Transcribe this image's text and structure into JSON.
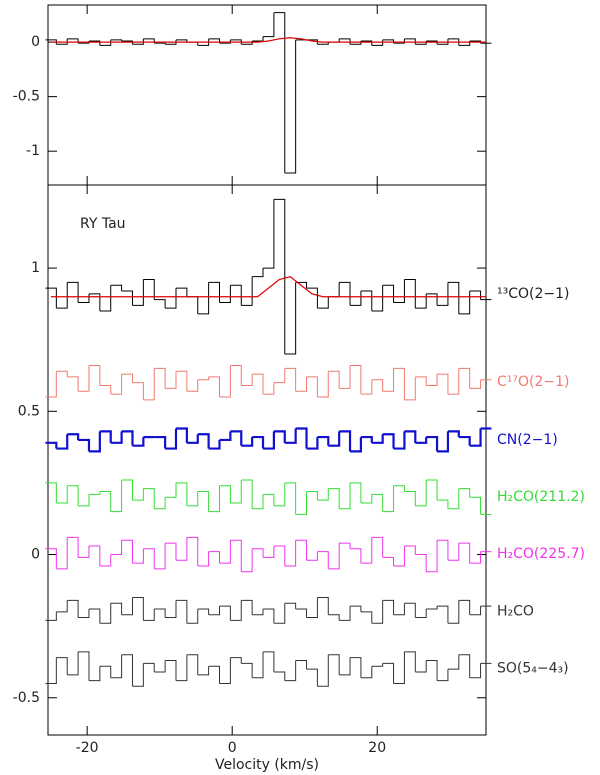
{
  "chart_data": [
    {
      "type": "line",
      "x": [
        -25,
        -23.5,
        -22,
        -20.5,
        -19,
        -17.5,
        -16,
        -14.5,
        -13,
        -11.5,
        -10,
        -8.5,
        -7,
        -5.5,
        -4,
        -2.5,
        -1,
        0.5,
        2,
        3.5,
        5,
        6.5,
        8,
        9.5,
        11,
        12.5,
        14,
        15.5,
        17,
        18.5,
        20,
        21.5,
        23,
        24.5,
        26,
        27.5,
        29,
        30.5,
        32,
        33.5,
        35
      ],
      "xlim": [
        -25.4,
        35
      ],
      "ylim": [
        -1.31,
        0.34
      ],
      "yticks": [
        0,
        -0.5,
        -1
      ],
      "series": [
        {
          "color": "#000000",
          "step": true,
          "values": [
            0.02,
            -0.02,
            0.03,
            -0.01,
            0.01,
            -0.03,
            0.02,
            0.01,
            -0.02,
            0.03,
            -0.01,
            -0.02,
            0.02,
            0,
            -0.03,
            0.03,
            -0.01,
            0.02,
            -0.02,
            0.01,
            0.05,
            0.27,
            -1.2,
            0.02,
            0.02,
            -0.02,
            0,
            0.03,
            -0.02,
            0.01,
            -0.03,
            0.02,
            -0.01,
            0.03,
            -0.02,
            0.01,
            -0.02,
            0.03,
            -0.03,
            0.01,
            -0.01
          ]
        },
        {
          "color": "#e00000",
          "step": false,
          "values": [
            0,
            0,
            0,
            0,
            0,
            0,
            0,
            0,
            0,
            0,
            0,
            0,
            0,
            0,
            0,
            0,
            0,
            0,
            0,
            0,
            0.01,
            0.03,
            0.04,
            0.03,
            0.01,
            0,
            0,
            0,
            0,
            0,
            0,
            0,
            0,
            0,
            0,
            0,
            0,
            0,
            0,
            0,
            0
          ]
        }
      ]
    },
    {
      "type": "line",
      "annotation": "RY Tau",
      "xlabel": "Velocity (km/s)",
      "x": [
        -25,
        -23.5,
        -22,
        -20.5,
        -19,
        -17.5,
        -16,
        -14.5,
        -13,
        -11.5,
        -10,
        -8.5,
        -7,
        -5.5,
        -4,
        -2.5,
        -1,
        0.5,
        2,
        3.5,
        5,
        6.5,
        8,
        9.5,
        11,
        12.5,
        14,
        15.5,
        17,
        18.5,
        20,
        21.5,
        23,
        24.5,
        26,
        27.5,
        29,
        30.5,
        32,
        33.5,
        35
      ],
      "xlim": [
        -25.4,
        35
      ],
      "xticks": [
        -20,
        0,
        20
      ],
      "ylim": [
        -0.63,
        1.29
      ],
      "yticks": [
        -0.5,
        0,
        0.5,
        1
      ],
      "series": [
        {
          "name": "¹³CO(2−1)",
          "color": "#000000",
          "step": true,
          "values": [
            0.93,
            0.86,
            0.95,
            0.88,
            0.91,
            0.85,
            0.94,
            0.92,
            0.87,
            0.96,
            0.89,
            0.86,
            0.93,
            0.9,
            0.84,
            0.95,
            0.88,
            0.94,
            0.87,
            0.97,
            1.0,
            1.24,
            0.7,
            0.95,
            0.93,
            0.86,
            0.9,
            0.95,
            0.87,
            0.92,
            0.85,
            0.94,
            0.88,
            0.96,
            0.86,
            0.91,
            0.87,
            0.95,
            0.84,
            0.92,
            0.89
          ]
        },
        {
          "color": "#e00000",
          "step": false,
          "values": [
            0.9,
            0.9,
            0.9,
            0.9,
            0.9,
            0.9,
            0.9,
            0.9,
            0.9,
            0.9,
            0.9,
            0.9,
            0.9,
            0.9,
            0.9,
            0.9,
            0.9,
            0.9,
            0.9,
            0.9,
            0.93,
            0.96,
            0.97,
            0.94,
            0.91,
            0.9,
            0.9,
            0.9,
            0.9,
            0.9,
            0.9,
            0.9,
            0.9,
            0.9,
            0.9,
            0.9,
            0.9,
            0.9,
            0.9,
            0.9,
            0.9
          ]
        },
        {
          "name": "C¹⁷O(2−1)",
          "color": "#f07a70",
          "step": true,
          "values": [
            0.55,
            0.64,
            0.62,
            0.57,
            0.66,
            0.59,
            0.56,
            0.63,
            0.6,
            0.54,
            0.65,
            0.58,
            0.64,
            0.57,
            0.61,
            0.62,
            0.55,
            0.66,
            0.59,
            0.63,
            0.56,
            0.6,
            0.65,
            0.57,
            0.62,
            0.55,
            0.64,
            0.58,
            0.66,
            0.56,
            0.61,
            0.57,
            0.65,
            0.54,
            0.62,
            0.59,
            0.63,
            0.56,
            0.65,
            0.58,
            0.61
          ]
        },
        {
          "name": "CN(2−1)",
          "color": "#1010d0",
          "step": true,
          "values": [
            0.39,
            0.37,
            0.42,
            0.4,
            0.36,
            0.43,
            0.39,
            0.43,
            0.38,
            0.41,
            0.41,
            0.37,
            0.44,
            0.39,
            0.42,
            0.37,
            0.4,
            0.43,
            0.38,
            0.41,
            0.37,
            0.43,
            0.39,
            0.44,
            0.37,
            0.41,
            0.38,
            0.43,
            0.36,
            0.41,
            0.39,
            0.42,
            0.37,
            0.43,
            0.39,
            0.41,
            0.36,
            0.43,
            0.41,
            0.38,
            0.44
          ]
        },
        {
          "name": "H₂CO(211.2)",
          "color": "#33dd33",
          "step": true,
          "values": [
            0.25,
            0.18,
            0.24,
            0.17,
            0.21,
            0.22,
            0.15,
            0.26,
            0.19,
            0.23,
            0.16,
            0.2,
            0.25,
            0.17,
            0.22,
            0.15,
            0.24,
            0.18,
            0.26,
            0.16,
            0.21,
            0.17,
            0.25,
            0.14,
            0.22,
            0.19,
            0.23,
            0.16,
            0.25,
            0.18,
            0.21,
            0.15,
            0.24,
            0.22,
            0.17,
            0.26,
            0.19,
            0.16,
            0.23,
            0.2,
            0.14
          ]
        },
        {
          "name": "H₂CO(225.7)",
          "color": "#ee33ee",
          "step": true,
          "values": [
            0.02,
            -0.05,
            0.06,
            -0.01,
            0.03,
            -0.04,
            0,
            0.05,
            -0.03,
            0.02,
            -0.05,
            0.04,
            -0.02,
            0.06,
            -0.04,
            0.01,
            -0.03,
            0.05,
            -0.06,
            0.02,
            -0.01,
            0.03,
            -0.04,
            0.05,
            -0.02,
            0.01,
            -0.05,
            0.04,
            0.02,
            -0.03,
            0.06,
            -0.01,
            -0.04,
            0.03,
            0,
            -0.06,
            0.05,
            -0.02,
            0.04,
            -0.03,
            0.01
          ]
        },
        {
          "name": "H₂CO",
          "color": "#333333",
          "step": true,
          "values": [
            -0.23,
            -0.2,
            -0.16,
            -0.22,
            -0.19,
            -0.24,
            -0.17,
            -0.21,
            -0.15,
            -0.23,
            -0.19,
            -0.22,
            -0.16,
            -0.24,
            -0.19,
            -0.21,
            -0.18,
            -0.23,
            -0.16,
            -0.21,
            -0.19,
            -0.24,
            -0.17,
            -0.19,
            -0.22,
            -0.15,
            -0.21,
            -0.23,
            -0.18,
            -0.2,
            -0.24,
            -0.16,
            -0.21,
            -0.17,
            -0.22,
            -0.19,
            -0.18,
            -0.24,
            -0.16,
            -0.21,
            -0.18
          ]
        },
        {
          "name": "SO(5₄−4₃)",
          "color": "#333333",
          "step": true,
          "values": [
            -0.45,
            -0.36,
            -0.42,
            -0.34,
            -0.44,
            -0.39,
            -0.43,
            -0.35,
            -0.46,
            -0.38,
            -0.41,
            -0.37,
            -0.44,
            -0.35,
            -0.42,
            -0.39,
            -0.45,
            -0.36,
            -0.38,
            -0.43,
            -0.34,
            -0.41,
            -0.44,
            -0.37,
            -0.4,
            -0.46,
            -0.35,
            -0.42,
            -0.36,
            -0.43,
            -0.39,
            -0.38,
            -0.45,
            -0.34,
            -0.41,
            -0.37,
            -0.44,
            -0.4,
            -0.35,
            -0.43,
            -0.38
          ]
        }
      ]
    }
  ]
}
